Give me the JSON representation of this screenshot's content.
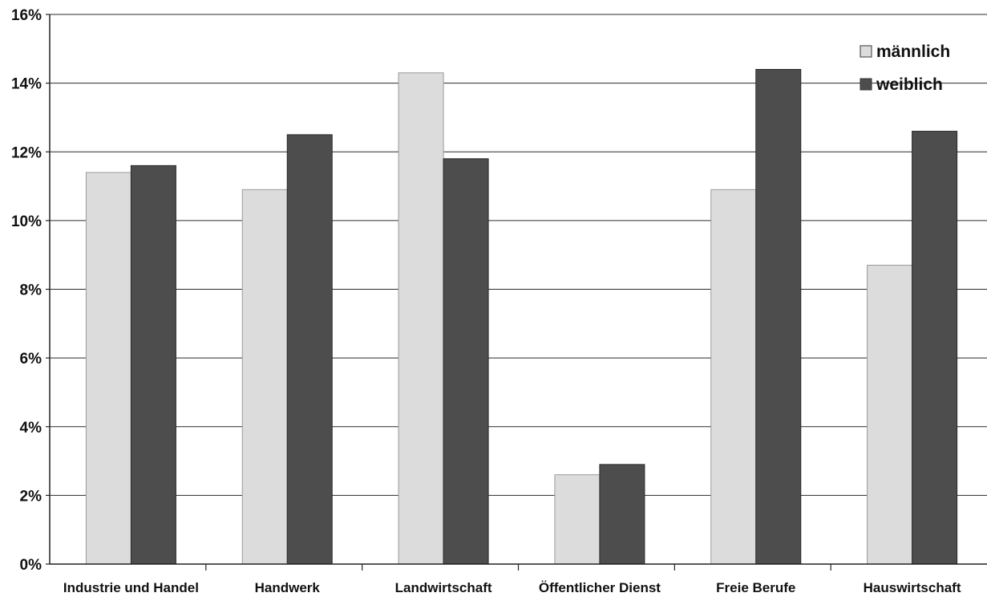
{
  "chart_data": {
    "type": "bar",
    "title": "",
    "xlabel": "",
    "ylabel": "",
    "ylim": [
      0,
      16
    ],
    "y_unit": "%",
    "y_ticks": [
      "0%",
      "2%",
      "4%",
      "6%",
      "8%",
      "10%",
      "12%",
      "14%",
      "16%"
    ],
    "categories": [
      "Industrie und Handel",
      "Handwerk",
      "Landwirtschaft",
      "Öffentlicher Dienst",
      "Freie Berufe",
      "Hauswirtschaft"
    ],
    "series": [
      {
        "name": "männlich",
        "values": [
          11.4,
          10.9,
          14.3,
          2.6,
          10.9,
          8.7
        ],
        "color": "#dcdcdc"
      },
      {
        "name": "weiblich",
        "values": [
          11.6,
          12.5,
          11.8,
          2.9,
          14.4,
          12.6
        ],
        "color": "#4d4d4d"
      }
    ],
    "grid": true,
    "legend_position": "top-right"
  }
}
